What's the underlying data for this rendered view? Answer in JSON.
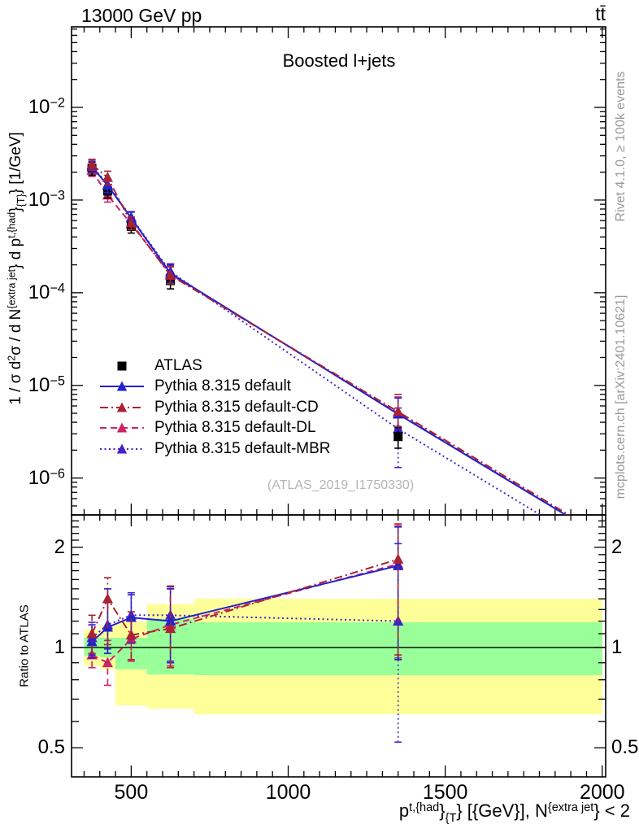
{
  "header": {
    "left_label": "13000 GeV pp",
    "right_label": "tt̄"
  },
  "plot": {
    "title": "Boosted l+jets",
    "watermark": "(ATLAS_2019_I1750330)",
    "ratio_ylabel": "Ratio to ATLAS"
  },
  "side_notes": {
    "top": "Rivet 4.1.0, ≥ 100k events",
    "bottom": "mcplots.cern.ch [arXiv:2401.10621]"
  },
  "chart_data": {
    "type": "line",
    "title": "Boosted l+jets",
    "x_axis": {
      "label_rich": [
        {
          "t": "p"
        },
        {
          "sup": "t,{had"
        },
        {
          "t": "}"
        },
        {
          "sub": "{T"
        },
        {
          "t": "} [{GeV}], N"
        },
        {
          "sup": "{extra jet"
        },
        {
          "t": "} < 2"
        }
      ],
      "lim": [
        310,
        2011
      ],
      "scale": "linear",
      "major_ticks": [
        500,
        1000,
        1500,
        2000
      ],
      "minor_step": 50
    },
    "y_main": {
      "label_rich": [
        {
          "t": "1 / σ d"
        },
        {
          "sup": "2"
        },
        {
          "t": "σ /  d N"
        },
        {
          "sup": "{extra jet"
        },
        {
          "t": "} d p"
        },
        {
          "sup": "t,{had"
        },
        {
          "t": "}"
        },
        {
          "sub": "{T}"
        },
        {
          "t": "} [1/GeV]"
        }
      ],
      "lim": [
        4e-07,
        0.074
      ],
      "scale": "log",
      "labeled_exponents": [
        -2,
        -3,
        -4,
        -5,
        -6
      ]
    },
    "y_ratio": {
      "lim": [
        0.409,
        2.5
      ],
      "scale": "log",
      "ticks": [
        {
          "v": 2,
          "label": "2"
        },
        {
          "v": 1,
          "label": "1"
        },
        {
          "v": 0.5,
          "label": "0.5"
        }
      ]
    },
    "bins": {
      "edges": [
        350,
        400,
        450,
        550,
        700,
        2000
      ],
      "centers": [
        375,
        425,
        500,
        625,
        1350
      ]
    },
    "uncertainty_bands": {
      "outer_color": "#ffff99",
      "inner_color": "#99ff99",
      "outer": [
        [
          0.88,
          1.13
        ],
        [
          0.86,
          1.16
        ],
        [
          0.67,
          1.2
        ],
        [
          0.655,
          1.35
        ],
        [
          0.63,
          1.4
        ]
      ],
      "inner": [
        [
          0.945,
          1.07
        ],
        [
          0.935,
          1.07
        ],
        [
          0.86,
          1.07
        ],
        [
          0.83,
          1.22
        ],
        [
          0.826,
          1.19
        ]
      ]
    },
    "series": [
      {
        "name": "ATLAS",
        "color": "#000000",
        "marker": "square",
        "dash": null,
        "is_data": true,
        "values": [
          0.0022,
          0.00125,
          0.00052,
          0.000135,
          2.8e-06
        ],
        "err_lo": [
          0.00185,
          0.00105,
          0.00044,
          0.00011,
          2.1e-06
        ],
        "err_hi": [
          0.00255,
          0.00145,
          0.0006,
          0.00016,
          3.5e-06
        ]
      },
      {
        "name": "Pythia 8.315 default",
        "color": "#2222cc",
        "marker": "triangle",
        "dash": "solid",
        "values": [
          0.00229,
          0.00144,
          0.00064,
          0.000162,
          4.9e-06
        ],
        "err_lo": [
          0.002,
          0.0012,
          0.00055,
          0.00013,
          3.3e-06
        ],
        "err_hi": [
          0.0026,
          0.0017,
          0.00074,
          0.0002,
          7.3e-06
        ],
        "tail_value": 2.2e-07,
        "ratio": [
          1.04,
          1.15,
          1.23,
          1.2,
          1.76
        ],
        "ratio_err_lo": [
          0.93,
          0.96,
          1.03,
          0.9,
          0.92
        ],
        "ratio_err_hi": [
          1.17,
          1.5,
          1.44,
          1.5,
          2.3
        ]
      },
      {
        "name": "Pythia 8.315 default-CD",
        "color": "#aa2233",
        "marker": "triangle",
        "dash": "dashdot",
        "values": [
          0.00242,
          0.00175,
          0.000567,
          0.000154,
          5.2e-06
        ],
        "err_lo": [
          0.0021,
          0.00145,
          0.00048,
          0.000125,
          3.6e-06
        ],
        "err_hi": [
          0.00275,
          0.00205,
          0.00066,
          0.00019,
          8e-06
        ],
        "tail_value": 2.3e-07,
        "ratio": [
          1.1,
          1.4,
          1.09,
          1.14,
          1.84
        ],
        "ratio_err_lo": [
          0.96,
          1.02,
          0.92,
          0.87,
          0.95
        ],
        "ratio_err_hi": [
          1.25,
          1.62,
          1.28,
          1.53,
          2.35
        ]
      },
      {
        "name": "Pythia 8.315 default-DL",
        "color": "#cc2266",
        "marker": "triangle",
        "dash": "dashed",
        "values": [
          0.00209,
          0.00113,
          0.000551,
          0.000158,
          5e-06
        ],
        "err_lo": [
          0.0018,
          0.00095,
          0.00047,
          0.000128,
          3.4e-06
        ],
        "err_hi": [
          0.0024,
          0.00133,
          0.00064,
          0.000195,
          7.5e-06
        ],
        "tail_value": 2.2e-07,
        "ratio": [
          0.95,
          0.9,
          1.06,
          1.17,
          1.78
        ],
        "ratio_err_lo": [
          0.87,
          0.77,
          0.91,
          0.88,
          0.93
        ],
        "ratio_err_hi": [
          1.05,
          1.05,
          1.22,
          1.5,
          2.32
        ]
      },
      {
        "name": "Pythia 8.315 default-MBR",
        "color": "#4422cc",
        "marker": "triangle",
        "dash": "dotted",
        "values": [
          0.00235,
          0.00146,
          0.00065,
          0.000169,
          3.4e-06
        ],
        "err_lo": [
          0.00205,
          0.00125,
          0.00056,
          0.000135,
          1.3e-06
        ],
        "err_hi": [
          0.0027,
          0.0017,
          0.00075,
          0.000205,
          5.7e-06
        ],
        "tail_value": 1.5e-07,
        "ratio": [
          1.07,
          1.17,
          1.25,
          1.25,
          1.2
        ],
        "ratio_err_lo": [
          0.95,
          0.99,
          1.06,
          0.91,
          0.52
        ],
        "ratio_err_hi": [
          1.19,
          1.38,
          1.46,
          1.52,
          2.05
        ]
      }
    ]
  }
}
